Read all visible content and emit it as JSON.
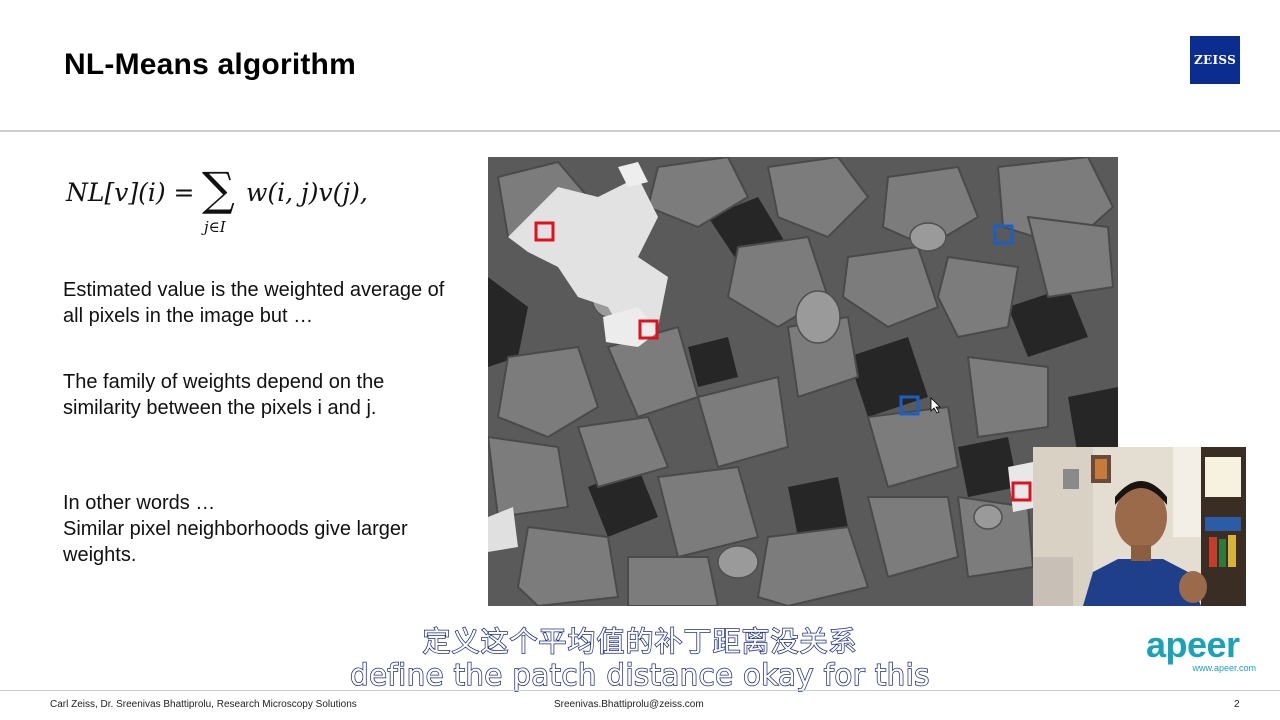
{
  "slide": {
    "title": "NL-Means algorithm",
    "brand_logo": "ZEISS",
    "page_number": "2"
  },
  "formula": {
    "lhs": "NL[v](i) =",
    "sum_symbol": "∑",
    "sum_subscript": "j∈I",
    "rhs": "w(i, j)v(j),"
  },
  "body": {
    "para1": "Estimated value is the weighted average of all pixels in the image but …",
    "para2": "The family of weights depend on the similarity between the pixels i and j.",
    "para3_line1": "In other words …",
    "para3_line2": "Similar pixel neighborhoods give larger weights."
  },
  "figure": {
    "patch_colors": {
      "red": "#e0101e",
      "blue": "#1b5fc4"
    }
  },
  "subtitles": {
    "chinese": "定义这个平均值的补丁距离没关系",
    "english": "define the patch distance okay for this"
  },
  "apeer": {
    "word": "apeer",
    "url": "www.apeer.com"
  },
  "footer": {
    "left": "Carl Zeiss, Dr. Sreenivas Bhattiprolu, Research Microscopy Solutions",
    "center": "Sreenivas.Bhattiprolu@zeiss.com"
  }
}
